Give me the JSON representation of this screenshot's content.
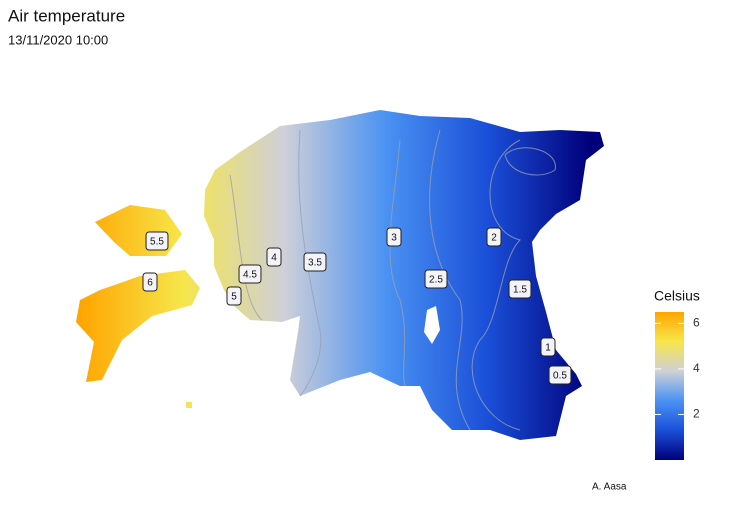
{
  "header": {
    "title": "Air temperature",
    "subtitle": "13/11/2020 10:00"
  },
  "map": {
    "contour_labels": [
      5.5,
      6,
      4,
      4.5,
      5,
      3.5,
      3,
      2.5,
      2,
      1.5,
      1,
      0.5
    ]
  },
  "legend": {
    "title": "Celsius",
    "lim": [
      0,
      6.5
    ],
    "ticks": [
      2,
      4,
      6
    ],
    "colors": [
      "#00007a",
      "#1a4fd8",
      "#4a92f2",
      "#cfd0d8",
      "#f6e64a",
      "#ffa500"
    ]
  },
  "credit": "A. Aasa"
}
